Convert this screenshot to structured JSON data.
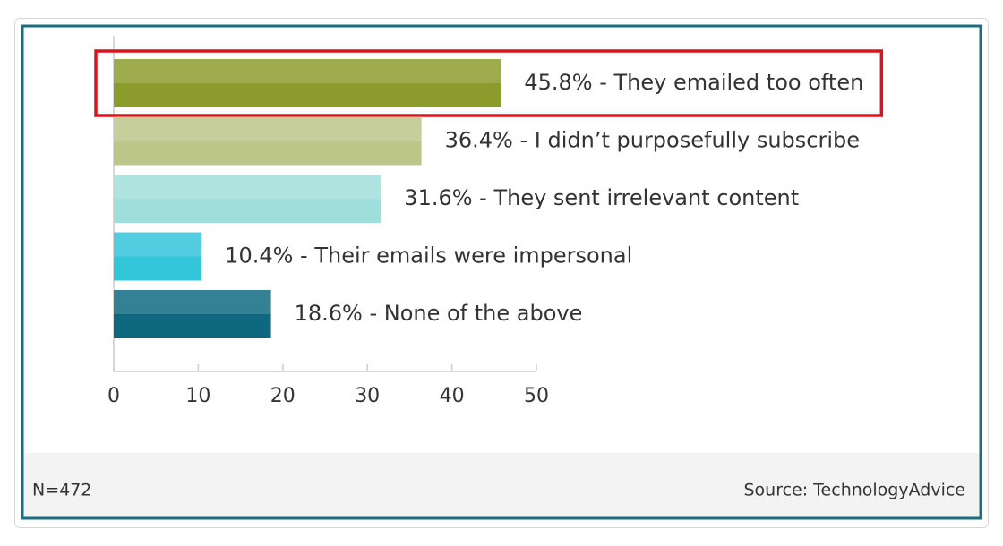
{
  "chart_data": {
    "type": "bar",
    "orientation": "horizontal",
    "categories": [
      "45.8% - They emailed too often",
      "36.4% - I didn’t purposefully subscribe",
      "31.6% - They sent irrelevant content",
      "10.4% - Their emails were impersonal",
      "18.6% - None of the above"
    ],
    "values": [
      45.8,
      36.4,
      31.6,
      10.4,
      18.6
    ],
    "colors": [
      "#8c9c2c",
      "#bcc688",
      "#9fdedb",
      "#33c5da",
      "#0e6880"
    ],
    "xlim": [
      0,
      50
    ],
    "xticks": [
      0,
      10,
      20,
      30,
      40,
      50
    ],
    "highlight": "They emailed too often",
    "note": "N=472",
    "source": "Source: TechnologyAdvice"
  }
}
